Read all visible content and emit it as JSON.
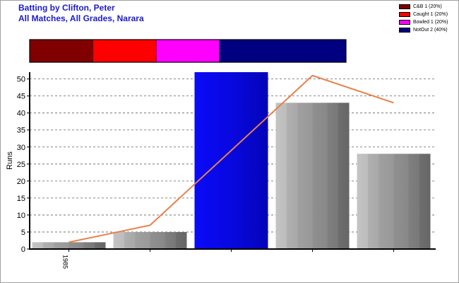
{
  "header": {
    "title_line1": "Batting by Clifton, Peter",
    "title_line2": "All Matches, All Grades, Narara"
  },
  "colors": {
    "title": "#1c1cc8",
    "trend_line": "#e8804a",
    "highlight_bar": "#0a0af0",
    "grey_bar": "#a8a8a8"
  },
  "legend": [
    {
      "label": "C&B 1 (20%)",
      "color": "#800000"
    },
    {
      "label": "Caught 1 (20%)",
      "color": "#ff0000"
    },
    {
      "label": "Bowled 1 (20%)",
      "color": "#ff00ff"
    },
    {
      "label": "NotOut 2 (40%)",
      "color": "#000080"
    }
  ],
  "chart_data": [
    {
      "type": "bar",
      "title": "",
      "stacked_share": [
        {
          "name": "C&B",
          "count": 1,
          "percent": 20,
          "color": "#800000"
        },
        {
          "name": "Caught",
          "count": 1,
          "percent": 20,
          "color": "#ff0000"
        },
        {
          "name": "Bowled",
          "count": 1,
          "percent": 20,
          "color": "#ff00ff"
        },
        {
          "name": "NotOut",
          "count": 2,
          "percent": 40,
          "color": "#000080"
        }
      ]
    },
    {
      "type": "bar",
      "xlabel": "",
      "ylabel": "Runs",
      "ylim": [
        0,
        52
      ],
      "yticks": [
        0,
        5,
        10,
        15,
        20,
        25,
        30,
        35,
        40,
        45,
        50
      ],
      "x_tick_labels": [
        "1985",
        "",
        "",
        "",
        ""
      ],
      "grid": true,
      "series": [
        {
          "type": "bar",
          "values": [
            2,
            5,
            52,
            43,
            28
          ],
          "highlight_index": 2
        },
        {
          "type": "line",
          "values": [
            2,
            7,
            29,
            51,
            43
          ]
        }
      ]
    }
  ]
}
